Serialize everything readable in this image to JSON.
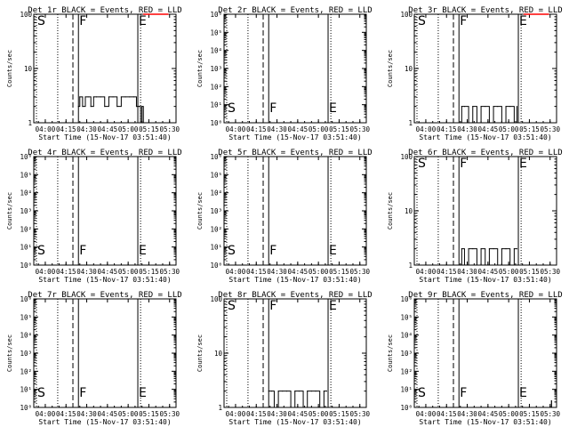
{
  "figure": {
    "panels": [
      {
        "title": "Det 1r BLACK = Events, RED = LLD",
        "ylabel": "Counts/sec",
        "xlabel": "Start Time (15-Nov-17 03:51:40)"
      },
      {
        "title": "Det 2r BLACK = Events, RED = LLD",
        "ylabel": "Counts/sec",
        "xlabel": "Start Time (15-Nov-17 03:51:40)"
      },
      {
        "title": "Det 3r BLACK = Events, RED = LLD",
        "ylabel": "Counts/sec",
        "xlabel": "Start Time (15-Nov-17 03:51:40)"
      },
      {
        "title": "Det 4r BLACK = Events, RED = LLD",
        "ylabel": "Counts/sec",
        "xlabel": "Start Time (15-Nov-17 03:51:40)"
      },
      {
        "title": "Det 5r BLACK = Events, RED = LLD",
        "ylabel": "Counts/sec",
        "xlabel": "Start Time (15-Nov-17 03:51:40)"
      },
      {
        "title": "Det 6r BLACK = Events, RED = LLD",
        "ylabel": "Counts/sec",
        "xlabel": "Start Time (15-Nov-17 03:51:40)"
      },
      {
        "title": "Det 7r BLACK = Events, RED = LLD",
        "ylabel": "Counts/sec",
        "xlabel": "Start Time (15-Nov-17 03:51:40)"
      },
      {
        "title": "Det 8r BLACK = Events, RED = LLD",
        "ylabel": "Counts/sec",
        "xlabel": "Start Time (15-Nov-17 03:51:40)"
      },
      {
        "title": "Det 9r BLACK = Events, RED = LLD",
        "ylabel": "Counts/sec",
        "xlabel": "Start Time (15-Nov-17 03:51:40)"
      }
    ]
  },
  "chart_data": [
    {
      "type": "line",
      "title": "Det 1r BLACK = Events, RED = LLD",
      "xlabel": "Start Time (15-Nov-17 03:51:40)",
      "ylabel": "Counts/sec",
      "yscale": "log",
      "ylim": [
        1,
        100
      ],
      "yticks": [
        "1",
        "10",
        "100"
      ],
      "xlim": [
        "03:51:40",
        "05:34:40"
      ],
      "xticks": [
        "04:00",
        "04:15",
        "04:30",
        "04:45",
        "05:00",
        "05:15",
        "05:30"
      ],
      "markers": [
        {
          "label": "S",
          "x": "03:51:40",
          "style": "dotted"
        },
        {
          "label": "",
          "x": "04:09",
          "style": "dotted"
        },
        {
          "label": "",
          "x": "04:20",
          "style": "dashed"
        },
        {
          "label": "F",
          "x": "04:24",
          "style": "solid"
        },
        {
          "label": "E",
          "x": "05:07",
          "style": "solid"
        },
        {
          "label": "",
          "x": "05:09",
          "style": "dotted"
        }
      ],
      "series": [
        {
          "name": "Events",
          "color": "#000000",
          "x": [
            "04:24",
            "04:25",
            "04:27",
            "04:29",
            "04:31",
            "04:33",
            "04:35",
            "04:37",
            "04:40",
            "04:43",
            "04:46",
            "04:49",
            "04:52",
            "04:55",
            "04:58",
            "05:01",
            "05:04",
            "05:06",
            "05:08",
            "05:09",
            "05:10",
            "05:11"
          ],
          "values": [
            2,
            3,
            2,
            3,
            3,
            2,
            3,
            3,
            3,
            2,
            3,
            3,
            2,
            3,
            3,
            3,
            3,
            2,
            2,
            1,
            2,
            1
          ]
        },
        {
          "name": "LLD",
          "color": "#ff0000",
          "x": [
            "05:11",
            "05:14",
            "05:17",
            "05:20",
            "05:23",
            "05:26",
            "05:29"
          ],
          "values": [
            100,
            100,
            100,
            100,
            100,
            100,
            100
          ]
        }
      ]
    },
    {
      "type": "line",
      "title": "Det 2r BLACK = Events, RED = LLD",
      "xlabel": "Start Time (15-Nov-17 03:51:40)",
      "ylabel": "Counts/sec",
      "yscale": "log",
      "ylim": [
        1,
        1000000
      ],
      "yticks": [
        "10⁰",
        "10¹",
        "10²",
        "10³",
        "10⁴",
        "10⁵",
        "10⁶"
      ],
      "xlim": [
        "03:51:40",
        "05:34:40"
      ],
      "xticks": [
        "04:00",
        "04:15",
        "04:30",
        "04:45",
        "05:00",
        "05:15",
        "05:30"
      ],
      "markers": [
        {
          "label": "S",
          "x": "03:51:40",
          "style": "dotted"
        },
        {
          "label": "",
          "x": "04:09",
          "style": "dotted"
        },
        {
          "label": "",
          "x": "04:20",
          "style": "dashed"
        },
        {
          "label": "F",
          "x": "04:24",
          "style": "solid"
        },
        {
          "label": "E",
          "x": "05:07",
          "style": "solid"
        },
        {
          "label": "",
          "x": "05:09",
          "style": "dotted"
        }
      ],
      "series": [
        {
          "name": "Events",
          "color": "#000000",
          "x": [],
          "values": []
        },
        {
          "name": "LLD",
          "color": "#ff0000",
          "x": [],
          "values": []
        }
      ]
    },
    {
      "type": "line",
      "title": "Det 3r BLACK = Events, RED = LLD",
      "xlabel": "Start Time (15-Nov-17 03:51:40)",
      "ylabel": "Counts/sec",
      "yscale": "log",
      "ylim": [
        1,
        100
      ],
      "yticks": [
        "1",
        "10",
        "100"
      ],
      "xlim": [
        "03:51:40",
        "05:34:40"
      ],
      "xticks": [
        "04:00",
        "04:15",
        "04:30",
        "04:45",
        "05:00",
        "05:15",
        "05:30"
      ],
      "markers": [
        {
          "label": "S",
          "x": "03:51:40",
          "style": "dotted"
        },
        {
          "label": "",
          "x": "04:09",
          "style": "dotted"
        },
        {
          "label": "",
          "x": "04:20",
          "style": "dashed"
        },
        {
          "label": "F",
          "x": "04:24",
          "style": "solid"
        },
        {
          "label": "E",
          "x": "05:07",
          "style": "solid"
        },
        {
          "label": "",
          "x": "05:09",
          "style": "dotted"
        }
      ],
      "series": [
        {
          "name": "Events",
          "color": "#000000",
          "x": [
            "04:24",
            "04:26",
            "04:28",
            "04:31",
            "04:34",
            "04:37",
            "04:40",
            "04:43",
            "04:46",
            "04:49",
            "04:52",
            "04:55",
            "04:58",
            "05:01",
            "05:04",
            "05:06"
          ],
          "values": [
            1,
            2,
            2,
            1,
            2,
            1,
            2,
            2,
            1,
            2,
            2,
            1,
            2,
            2,
            1,
            2
          ]
        },
        {
          "name": "LLD",
          "color": "#ff0000",
          "x": [
            "05:11",
            "05:14",
            "05:17",
            "05:20",
            "05:23",
            "05:26",
            "05:29"
          ],
          "values": [
            100,
            100,
            100,
            100,
            100,
            100,
            100
          ]
        }
      ]
    },
    {
      "type": "line",
      "title": "Det 4r BLACK = Events, RED = LLD",
      "xlabel": "Start Time (15-Nov-17 03:51:40)",
      "ylabel": "Counts/sec",
      "yscale": "log",
      "ylim": [
        1,
        1000000
      ],
      "yticks": [
        "10⁰",
        "10¹",
        "10²",
        "10³",
        "10⁴",
        "10⁵",
        "10⁶"
      ],
      "xlim": [
        "03:51:40",
        "05:34:40"
      ],
      "xticks": [
        "04:00",
        "04:15",
        "04:30",
        "04:45",
        "05:00",
        "05:15",
        "05:30"
      ],
      "markers": [
        {
          "label": "S",
          "x": "03:51:40",
          "style": "dotted"
        },
        {
          "label": "",
          "x": "04:09",
          "style": "dotted"
        },
        {
          "label": "",
          "x": "04:20",
          "style": "dashed"
        },
        {
          "label": "F",
          "x": "04:24",
          "style": "solid"
        },
        {
          "label": "E",
          "x": "05:07",
          "style": "solid"
        },
        {
          "label": "",
          "x": "05:09",
          "style": "dotted"
        }
      ],
      "series": [
        {
          "name": "Events",
          "color": "#000000",
          "x": [],
          "values": []
        },
        {
          "name": "LLD",
          "color": "#ff0000",
          "x": [],
          "values": []
        }
      ]
    },
    {
      "type": "line",
      "title": "Det 5r BLACK = Events, RED = LLD",
      "xlabel": "Start Time (15-Nov-17 03:51:40)",
      "ylabel": "Counts/sec",
      "yscale": "log",
      "ylim": [
        1,
        1000000
      ],
      "yticks": [
        "10⁰",
        "10¹",
        "10²",
        "10³",
        "10⁴",
        "10⁵",
        "10⁶"
      ],
      "xlim": [
        "03:51:40",
        "05:34:40"
      ],
      "xticks": [
        "04:00",
        "04:15",
        "04:30",
        "04:45",
        "05:00",
        "05:15",
        "05:30"
      ],
      "markers": [
        {
          "label": "S",
          "x": "03:51:40",
          "style": "dotted"
        },
        {
          "label": "",
          "x": "04:09",
          "style": "dotted"
        },
        {
          "label": "",
          "x": "04:20",
          "style": "dashed"
        },
        {
          "label": "F",
          "x": "04:24",
          "style": "solid"
        },
        {
          "label": "E",
          "x": "05:07",
          "style": "solid"
        },
        {
          "label": "",
          "x": "05:09",
          "style": "dotted"
        }
      ],
      "series": [
        {
          "name": "Events",
          "color": "#000000",
          "x": [],
          "values": []
        },
        {
          "name": "LLD",
          "color": "#ff0000",
          "x": [],
          "values": []
        }
      ]
    },
    {
      "type": "line",
      "title": "Det 6r BLACK = Events, RED = LLD",
      "xlabel": "Start Time (15-Nov-17 03:51:40)",
      "ylabel": "Counts/sec",
      "yscale": "log",
      "ylim": [
        1,
        100
      ],
      "yticks": [
        "1",
        "10",
        "100"
      ],
      "xlim": [
        "03:51:40",
        "05:34:40"
      ],
      "xticks": [
        "04:00",
        "04:15",
        "04:30",
        "04:45",
        "05:00",
        "05:15",
        "05:30"
      ],
      "markers": [
        {
          "label": "S",
          "x": "03:51:40",
          "style": "dotted"
        },
        {
          "label": "",
          "x": "04:09",
          "style": "dotted"
        },
        {
          "label": "",
          "x": "04:20",
          "style": "dashed"
        },
        {
          "label": "F",
          "x": "04:24",
          "style": "solid"
        },
        {
          "label": "E",
          "x": "05:07",
          "style": "solid"
        },
        {
          "label": "",
          "x": "05:09",
          "style": "dotted"
        }
      ],
      "series": [
        {
          "name": "Events",
          "color": "#000000",
          "x": [
            "04:24",
            "04:26",
            "04:28",
            "04:31",
            "04:34",
            "04:37",
            "04:40",
            "04:43",
            "04:46",
            "04:49",
            "04:52",
            "04:55",
            "04:58",
            "05:01",
            "05:04",
            "05:06"
          ],
          "values": [
            1,
            2,
            1,
            2,
            2,
            1,
            2,
            1,
            2,
            2,
            1,
            2,
            2,
            1,
            2,
            2
          ]
        },
        {
          "name": "LLD",
          "color": "#ff0000",
          "x": [],
          "values": []
        }
      ]
    },
    {
      "type": "line",
      "title": "Det 7r BLACK = Events, RED = LLD",
      "xlabel": "Start Time (15-Nov-17 03:51:40)",
      "ylabel": "Counts/sec",
      "yscale": "log",
      "ylim": [
        1,
        1000000
      ],
      "yticks": [
        "10⁰",
        "10¹",
        "10²",
        "10³",
        "10⁴",
        "10⁵",
        "10⁶"
      ],
      "xlim": [
        "03:51:40",
        "05:34:40"
      ],
      "xticks": [
        "04:00",
        "04:15",
        "04:30",
        "04:45",
        "05:00",
        "05:15",
        "05:30"
      ],
      "markers": [
        {
          "label": "S",
          "x": "03:51:40",
          "style": "dotted"
        },
        {
          "label": "",
          "x": "04:09",
          "style": "dotted"
        },
        {
          "label": "",
          "x": "04:20",
          "style": "dashed"
        },
        {
          "label": "F",
          "x": "04:24",
          "style": "solid"
        },
        {
          "label": "E",
          "x": "05:07",
          "style": "solid"
        },
        {
          "label": "",
          "x": "05:09",
          "style": "dotted"
        }
      ],
      "series": [
        {
          "name": "Events",
          "color": "#000000",
          "x": [],
          "values": []
        },
        {
          "name": "LLD",
          "color": "#ff0000",
          "x": [],
          "values": []
        }
      ]
    },
    {
      "type": "line",
      "title": "Det 8r BLACK = Events, RED = LLD",
      "xlabel": "Start Time (15-Nov-17 03:51:40)",
      "ylabel": "Counts/sec",
      "yscale": "log",
      "ylim": [
        1,
        100
      ],
      "yticks": [
        "1",
        "10",
        "100"
      ],
      "xlim": [
        "03:51:40",
        "05:34:40"
      ],
      "xticks": [
        "04:00",
        "04:15",
        "04:30",
        "04:45",
        "05:00",
        "05:15",
        "05:30"
      ],
      "markers": [
        {
          "label": "S",
          "x": "03:51:40",
          "style": "dotted"
        },
        {
          "label": "",
          "x": "04:09",
          "style": "dotted"
        },
        {
          "label": "",
          "x": "04:20",
          "style": "dashed"
        },
        {
          "label": "F",
          "x": "04:24",
          "style": "solid"
        },
        {
          "label": "E",
          "x": "05:07",
          "style": "solid"
        },
        {
          "label": "",
          "x": "05:09",
          "style": "dotted"
        }
      ],
      "series": [
        {
          "name": "Events",
          "color": "#000000",
          "x": [
            "04:24",
            "04:26",
            "04:28",
            "04:31",
            "04:34",
            "04:37",
            "04:40",
            "04:43",
            "04:46",
            "04:49",
            "04:52",
            "04:55",
            "04:58",
            "05:01",
            "05:04",
            "05:06"
          ],
          "values": [
            2,
            2,
            1,
            2,
            2,
            2,
            1,
            2,
            2,
            1,
            2,
            2,
            2,
            1,
            2,
            2
          ]
        },
        {
          "name": "LLD",
          "color": "#ff0000",
          "x": [],
          "values": []
        }
      ]
    },
    {
      "type": "line",
      "title": "Det 9r BLACK = Events, RED = LLD",
      "xlabel": "Start Time (15-Nov-17 03:51:40)",
      "ylabel": "Counts/sec",
      "yscale": "log",
      "ylim": [
        1,
        1000000
      ],
      "yticks": [
        "10⁰",
        "10¹",
        "10²",
        "10³",
        "10⁴",
        "10⁵",
        "10⁶"
      ],
      "xlim": [
        "03:51:40",
        "05:34:40"
      ],
      "xticks": [
        "04:00",
        "04:15",
        "04:30",
        "04:45",
        "05:00",
        "05:15",
        "05:30"
      ],
      "markers": [
        {
          "label": "S",
          "x": "03:51:40",
          "style": "dotted"
        },
        {
          "label": "",
          "x": "04:09",
          "style": "dotted"
        },
        {
          "label": "",
          "x": "04:20",
          "style": "dashed"
        },
        {
          "label": "F",
          "x": "04:24",
          "style": "solid"
        },
        {
          "label": "E",
          "x": "05:07",
          "style": "solid"
        },
        {
          "label": "",
          "x": "05:09",
          "style": "dotted"
        }
      ],
      "series": [
        {
          "name": "Events",
          "color": "#000000",
          "x": [
            "05:31"
          ],
          "values": [
            1
          ]
        },
        {
          "name": "LLD",
          "color": "#ff0000",
          "x": [],
          "values": []
        }
      ]
    }
  ]
}
